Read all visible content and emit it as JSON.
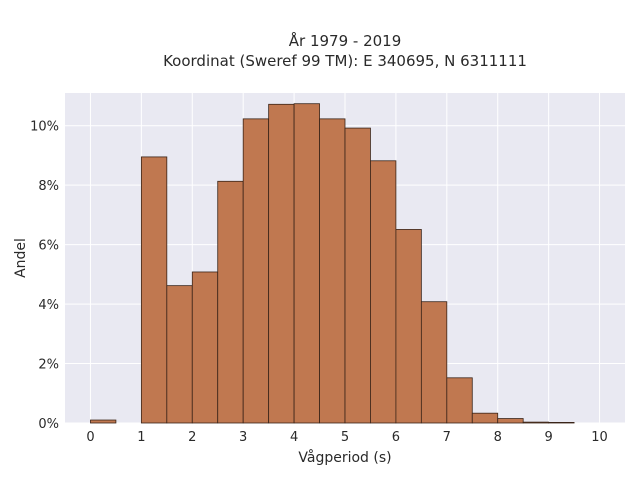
{
  "chart_data": {
    "type": "bar",
    "title_line1": "År 1979 - 2019",
    "title_line2": "Koordinat (Sweref 99 TM): E 340695, N 6311111",
    "xlabel": "Vågperiod (s)",
    "ylabel": "Andel",
    "xlim": [
      -0.5,
      10.5
    ],
    "ylim": [
      0,
      0.111
    ],
    "bin_width": 0.5,
    "x_ticks": [
      0,
      1,
      2,
      3,
      4,
      5,
      6,
      7,
      8,
      9,
      10
    ],
    "x_tick_labels": [
      "0",
      "1",
      "2",
      "3",
      "4",
      "5",
      "6",
      "7",
      "8",
      "9",
      "10"
    ],
    "y_ticks": [
      0,
      0.02,
      0.04,
      0.06,
      0.08,
      0.1
    ],
    "y_tick_labels": [
      "0%",
      "2%",
      "4%",
      "6%",
      "8%",
      "10%"
    ],
    "bin_starts": [
      0,
      1,
      1.5,
      2,
      2.5,
      3,
      3.5,
      4,
      4.5,
      5,
      5.5,
      6,
      6.5,
      7,
      7.5,
      8,
      8.5,
      9
    ],
    "values": [
      0.001,
      0.0895,
      0.0462,
      0.0508,
      0.0813,
      0.1023,
      0.1072,
      0.1074,
      0.1023,
      0.0992,
      0.0882,
      0.0651,
      0.0408,
      0.0152,
      0.0033,
      0.0015,
      0.0003,
      0.0002
    ],
    "grid": true,
    "colors": {
      "bar_fill": "#c07850",
      "bar_edge": "#3a2418",
      "plot_bg": "#e9e9f2",
      "grid": "#ffffff"
    }
  }
}
